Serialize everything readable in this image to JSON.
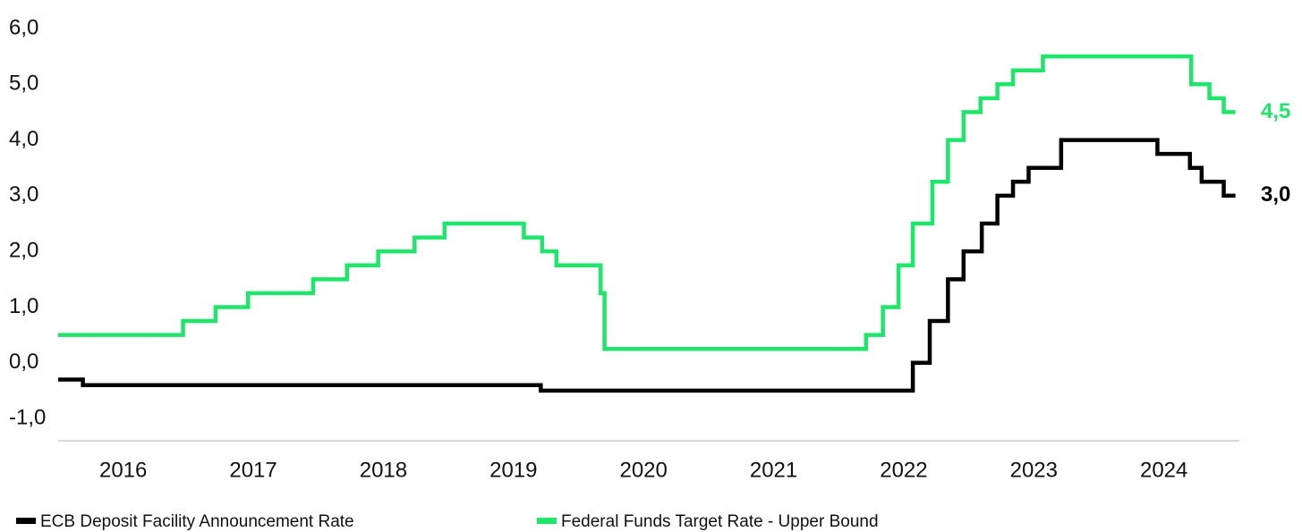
{
  "chart_data": {
    "type": "step",
    "xlim": [
      2016,
      2025.08
    ],
    "xticks": [
      {
        "value": 2016.5,
        "label": "2016"
      },
      {
        "value": 2017.5,
        "label": "2017"
      },
      {
        "value": 2018.5,
        "label": "2018"
      },
      {
        "value": 2019.5,
        "label": "2019"
      },
      {
        "value": 2020.5,
        "label": "2020"
      },
      {
        "value": 2021.5,
        "label": "2021"
      },
      {
        "value": 2022.5,
        "label": "2022"
      },
      {
        "value": 2023.5,
        "label": "2023"
      },
      {
        "value": 2024.5,
        "label": "2024"
      }
    ],
    "ylim": [
      -1.4,
      6.2
    ],
    "yticks": [
      {
        "value": 6,
        "label": "6,0"
      },
      {
        "value": 5,
        "label": "5,0"
      },
      {
        "value": 4,
        "label": "4,0"
      },
      {
        "value": 3,
        "label": "3,0"
      },
      {
        "value": 2,
        "label": "2,0"
      },
      {
        "value": 1,
        "label": "1,0"
      },
      {
        "value": 0,
        "label": "0,0"
      },
      {
        "value": -1,
        "label": "-1,0"
      }
    ],
    "grid": false,
    "legend": "bottom",
    "series": [
      {
        "name": "ECB Deposit Facility Announcement Rate",
        "color": "#000000",
        "last_label": "3,0",
        "x": [
          2016.0,
          2016.19,
          2019.71,
          2022.57,
          2022.7,
          2022.84,
          2022.96,
          2023.1,
          2023.22,
          2023.34,
          2023.46,
          2023.71,
          2024.45,
          2024.7,
          2024.79,
          2024.96,
          2025.05
        ],
        "values": [
          -0.3,
          -0.4,
          -0.5,
          0.0,
          0.75,
          1.5,
          2.0,
          2.5,
          3.0,
          3.25,
          3.5,
          4.0,
          3.75,
          3.5,
          3.25,
          3.0,
          3.0
        ]
      },
      {
        "name": "Federal Funds Target Rate - Upper Bound",
        "color": "#1ee66a",
        "last_label": "4,5",
        "x": [
          2016.0,
          2016.96,
          2017.21,
          2017.46,
          2017.96,
          2018.22,
          2018.46,
          2018.74,
          2018.97,
          2019.58,
          2019.72,
          2019.83,
          2020.17,
          2020.2,
          2022.21,
          2022.34,
          2022.46,
          2022.57,
          2022.72,
          2022.84,
          2022.96,
          2023.09,
          2023.22,
          2023.34,
          2023.57,
          2024.71,
          2024.85,
          2024.96,
          2025.05
        ],
        "values": [
          0.5,
          0.75,
          1.0,
          1.25,
          1.5,
          1.75,
          2.0,
          2.25,
          2.5,
          2.25,
          2.0,
          1.75,
          1.25,
          0.25,
          0.5,
          1.0,
          1.75,
          2.5,
          3.25,
          4.0,
          4.5,
          4.75,
          5.0,
          5.25,
          5.5,
          5.0,
          4.75,
          4.5,
          4.5
        ]
      }
    ]
  }
}
